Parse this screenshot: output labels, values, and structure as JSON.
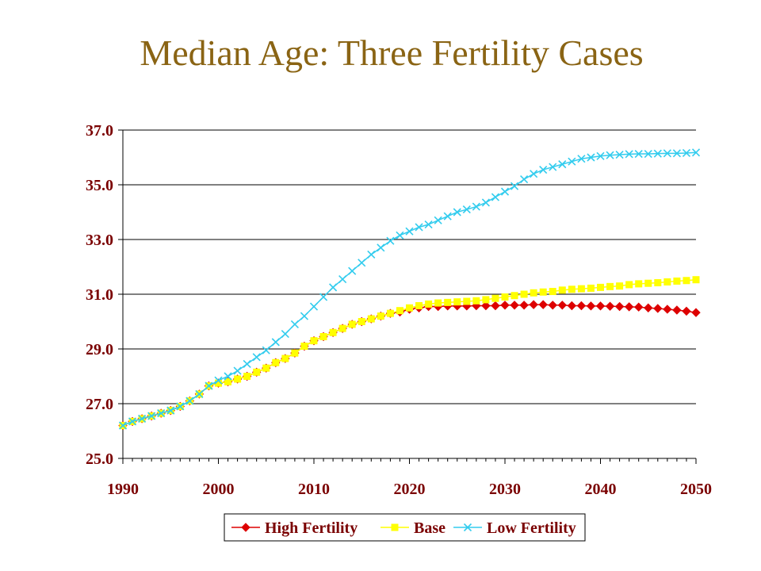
{
  "chart_data": {
    "type": "line",
    "title": "Median Age: Three Fertility Cases",
    "xlim": [
      1990,
      2050
    ],
    "ylim": [
      25.0,
      37.0
    ],
    "x_ticks": [
      "1990",
      "2000",
      "2010",
      "2020",
      "2030",
      "2040",
      "2050"
    ],
    "y_ticks": [
      "25.0",
      "27.0",
      "29.0",
      "31.0",
      "33.0",
      "35.0",
      "37.0"
    ],
    "grid": true,
    "legend_position": "bottom",
    "x": [
      1990,
      1991,
      1992,
      1993,
      1994,
      1995,
      1996,
      1997,
      1998,
      1999,
      2000,
      2001,
      2002,
      2003,
      2004,
      2005,
      2006,
      2007,
      2008,
      2009,
      2010,
      2011,
      2012,
      2013,
      2014,
      2015,
      2016,
      2017,
      2018,
      2019,
      2020,
      2021,
      2022,
      2023,
      2024,
      2025,
      2026,
      2027,
      2028,
      2029,
      2030,
      2031,
      2032,
      2033,
      2034,
      2035,
      2036,
      2037,
      2038,
      2039,
      2040,
      2041,
      2042,
      2043,
      2044,
      2045,
      2046,
      2047,
      2048,
      2049,
      2050
    ],
    "series": [
      {
        "name": "High Fertility",
        "color": "#dd0000",
        "marker": "diamond",
        "values": [
          26.2,
          26.35,
          26.45,
          26.55,
          26.65,
          26.75,
          26.9,
          27.1,
          27.35,
          27.65,
          27.75,
          27.8,
          27.9,
          28.0,
          28.15,
          28.3,
          28.5,
          28.65,
          28.85,
          29.1,
          29.3,
          29.45,
          29.6,
          29.75,
          29.9,
          30.0,
          30.1,
          30.2,
          30.3,
          30.35,
          30.45,
          30.5,
          30.55,
          30.55,
          30.57,
          30.57,
          30.57,
          30.58,
          30.58,
          30.58,
          30.6,
          30.6,
          30.6,
          30.62,
          30.62,
          30.6,
          30.6,
          30.58,
          30.58,
          30.57,
          30.57,
          30.56,
          30.55,
          30.54,
          30.53,
          30.5,
          30.48,
          30.45,
          30.42,
          30.38,
          30.33
        ]
      },
      {
        "name": "Base",
        "color": "#ffff00",
        "marker": "square",
        "values": [
          26.2,
          26.35,
          26.45,
          26.55,
          26.65,
          26.75,
          26.9,
          27.1,
          27.35,
          27.65,
          27.75,
          27.8,
          27.9,
          28.0,
          28.15,
          28.3,
          28.5,
          28.65,
          28.85,
          29.1,
          29.3,
          29.45,
          29.6,
          29.75,
          29.9,
          30.0,
          30.1,
          30.2,
          30.3,
          30.4,
          30.5,
          30.58,
          30.64,
          30.68,
          30.7,
          30.72,
          30.74,
          30.76,
          30.8,
          30.85,
          30.9,
          30.95,
          31.0,
          31.05,
          31.08,
          31.1,
          31.15,
          31.18,
          31.2,
          31.22,
          31.25,
          31.28,
          31.3,
          31.35,
          31.38,
          31.4,
          31.42,
          31.45,
          31.48,
          31.5,
          31.53
        ]
      },
      {
        "name": "Low Fertility",
        "color": "#33ccee",
        "marker": "x",
        "values": [
          26.2,
          26.35,
          26.45,
          26.55,
          26.65,
          26.75,
          26.9,
          27.1,
          27.35,
          27.65,
          27.85,
          28.0,
          28.2,
          28.45,
          28.7,
          28.95,
          29.25,
          29.55,
          29.9,
          30.2,
          30.55,
          30.9,
          31.25,
          31.55,
          31.85,
          32.15,
          32.45,
          32.7,
          32.95,
          33.15,
          33.3,
          33.45,
          33.55,
          33.7,
          33.85,
          34.0,
          34.1,
          34.2,
          34.35,
          34.55,
          34.75,
          34.95,
          35.2,
          35.4,
          35.55,
          35.65,
          35.75,
          35.85,
          35.95,
          36.0,
          36.05,
          36.08,
          36.1,
          36.12,
          36.13,
          36.13,
          36.14,
          36.15,
          36.15,
          36.16,
          36.18
        ]
      }
    ]
  }
}
